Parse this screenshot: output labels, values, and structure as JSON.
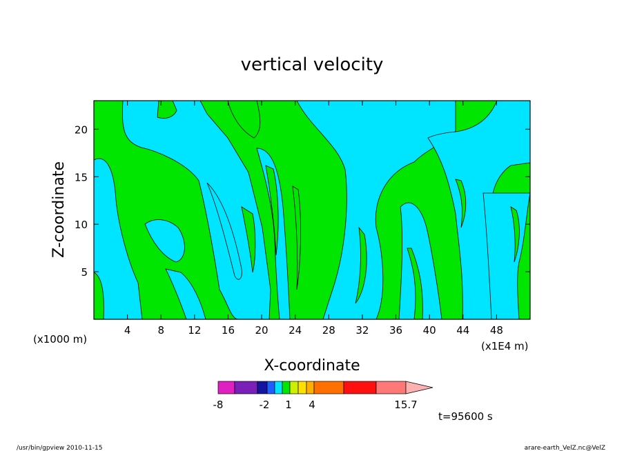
{
  "footer": {
    "left": "/usr/bin/gpview   2010-11-15",
    "right": "arare-earth_VelZ.nc@VelZ"
  },
  "time_label": "t=95600 s",
  "colors": {
    "field_negative": "#00e5ff",
    "field_positive": "#00e600",
    "contour": "#000000",
    "colorbar": [
      "#e020c0",
      "#7a1fb8",
      "#1414a0",
      "#1e60ff",
      "#00e5ff",
      "#00e600",
      "#ccf000",
      "#ffe000",
      "#ffb000",
      "#ff7000",
      "#ff1010",
      "#ff7878",
      "#ffb0b0"
    ]
  },
  "chart_data": {
    "type": "heatmap",
    "title": "vertical velocity",
    "xlabel": "X-coordinate",
    "ylabel": "Z-coordinate",
    "x_units_left": "(x1000 m)",
    "x_units_right": "(x1E4 m)",
    "xlim": [
      0,
      52
    ],
    "ylim": [
      0,
      23
    ],
    "x_ticks": [
      4,
      8,
      12,
      16,
      20,
      24,
      28,
      32,
      36,
      40,
      44,
      48
    ],
    "y_ticks": [
      5,
      10,
      15,
      20
    ],
    "grid": false,
    "colorbar": {
      "tick_labels": [
        "-8",
        "-2",
        "1",
        "4",
        "15.7"
      ],
      "tick_values": [
        -8,
        -2,
        1,
        4,
        15.7
      ],
      "max": 15.7
    }
  }
}
